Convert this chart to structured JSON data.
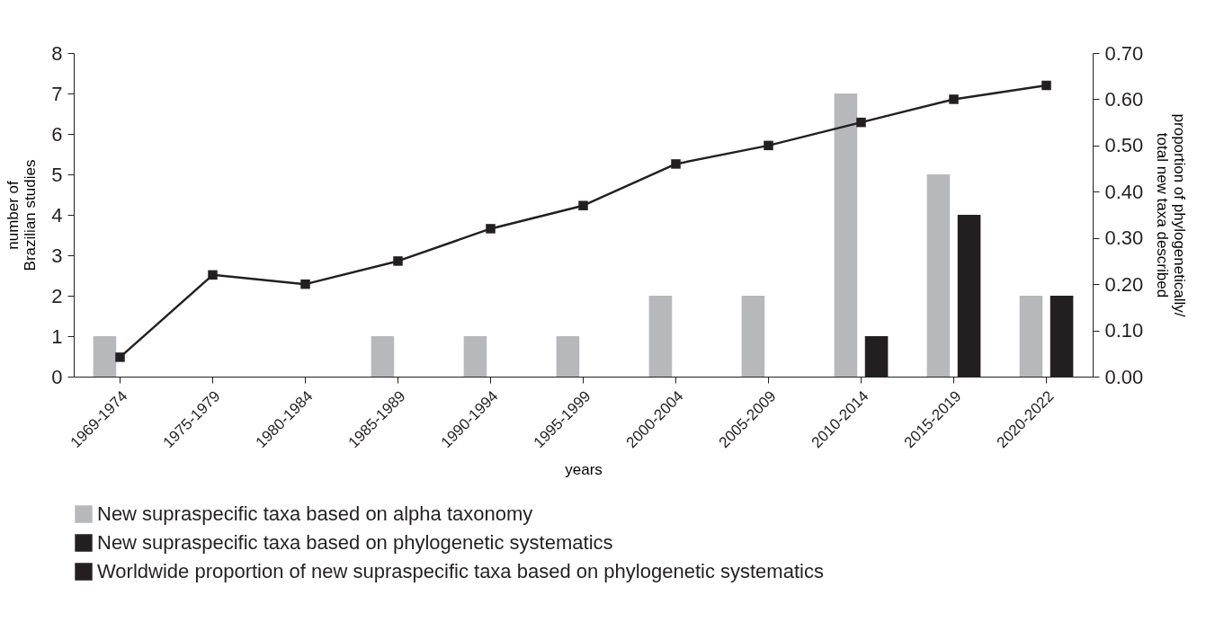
{
  "chart_data": {
    "type": "bar",
    "xlabel": "years",
    "ylabel": "number of Brazilian studies",
    "y2label": "proportion of phylogenetically/ total new taxa described",
    "categories": [
      "1969-1974",
      "1975-1979",
      "1980-1984",
      "1985-1989",
      "1990-1994",
      "1995-1999",
      "2000-2004",
      "2005-2009",
      "2010-2014",
      "2015-2019",
      "2020-2022"
    ],
    "series": [
      {
        "name": "New supraspecific taxa based on alpha taxonomy",
        "color": "#b7b8bb",
        "values": [
          1,
          0,
          0,
          1,
          1,
          1,
          2,
          2,
          7,
          5,
          2
        ]
      },
      {
        "name": "New supraspecific taxa based on phylogenetic systematics",
        "color": "#231f20",
        "values": [
          0,
          0,
          0,
          0,
          0,
          0,
          0,
          0,
          1,
          4,
          2
        ]
      },
      {
        "name": "Worldwide proportion of new supraspecific taxa based on phylogenetic systematics",
        "type": "line",
        "axis": "y2",
        "color": "#231f20",
        "values": [
          0.042,
          0.22,
          0.2,
          0.25,
          0.32,
          0.37,
          0.46,
          0.5,
          0.55,
          0.6,
          0.63
        ]
      }
    ],
    "ylim": [
      0,
      8
    ],
    "yticks": [
      0,
      1,
      2,
      3,
      4,
      5,
      6,
      7,
      8
    ],
    "y2lim": [
      0,
      0.7
    ],
    "y2ticks": [
      {
        "value": 0,
        "label": "0.00"
      },
      {
        "value": 0.1,
        "label": "0.10"
      },
      {
        "value": 0.2,
        "label": "0.20"
      },
      {
        "value": 0.3,
        "label": "0.30"
      },
      {
        "value": 0.4,
        "label": "0.40"
      },
      {
        "value": 0.5,
        "label": "0.50"
      },
      {
        "value": 0.6,
        "label": "0.60"
      },
      {
        "value": 0.7,
        "label": "0.70"
      }
    ],
    "grid": false,
    "legend": "bottom",
    "marker": "square",
    "line_style": "solid"
  }
}
